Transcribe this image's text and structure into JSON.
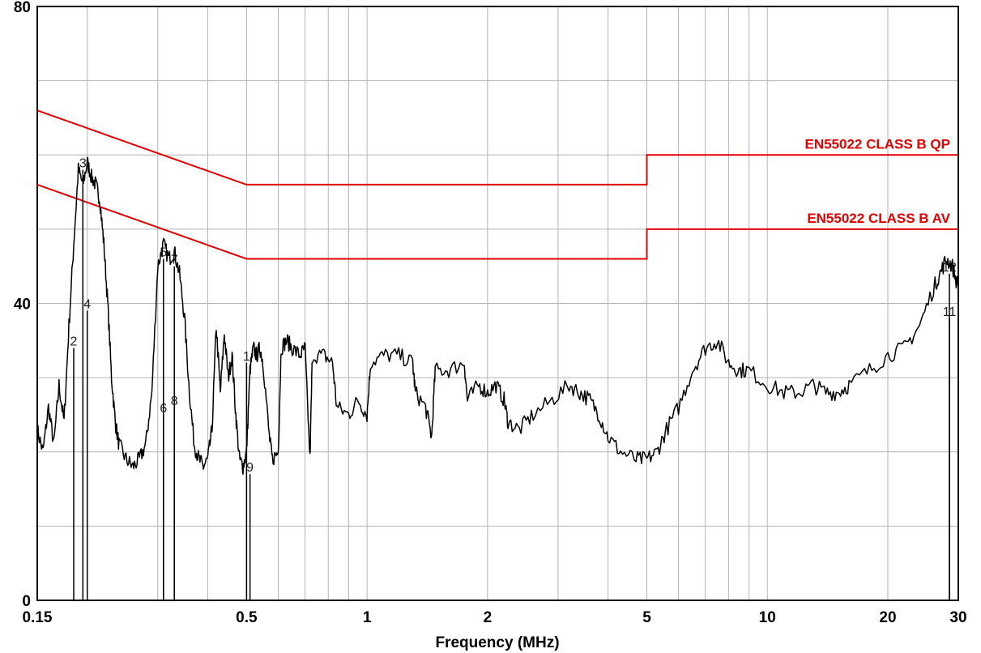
{
  "chart_data": {
    "type": "line",
    "title": "",
    "xlabel": "Frequency (MHz)",
    "ylabel": "",
    "x_scale": "log",
    "xlim": [
      0.15,
      30
    ],
    "ylim": [
      0,
      80
    ],
    "grid": true,
    "x_ticks": [
      {
        "value": 0.15,
        "label": "0.15"
      },
      {
        "value": 0.5,
        "label": "0.5"
      },
      {
        "value": 1,
        "label": "1"
      },
      {
        "value": 2,
        "label": "2"
      },
      {
        "value": 5,
        "label": "5"
      },
      {
        "value": 10,
        "label": "10"
      },
      {
        "value": 20,
        "label": "20"
      },
      {
        "value": 30,
        "label": "30"
      }
    ],
    "y_ticks": [
      {
        "value": 0,
        "label": "0"
      },
      {
        "value": 40,
        "label": "40"
      },
      {
        "value": 80,
        "label": "80"
      }
    ],
    "colors": {
      "trace": "#000000",
      "limit": "#e00000",
      "grid": "#b4b4b4"
    },
    "limits": [
      {
        "label": "EN55022 CLASS B QP",
        "points": [
          [
            0.15,
            66
          ],
          [
            0.5,
            56
          ],
          [
            5,
            56
          ],
          [
            5,
            60
          ],
          [
            30,
            60
          ]
        ]
      },
      {
        "label": "EN55022 CLASS B AV",
        "points": [
          [
            0.15,
            56
          ],
          [
            0.5,
            46
          ],
          [
            5,
            46
          ],
          [
            5,
            50
          ],
          [
            30,
            50
          ]
        ]
      }
    ],
    "trace": {
      "points": [
        [
          0.15,
          23
        ],
        [
          0.155,
          20
        ],
        [
          0.16,
          26
        ],
        [
          0.165,
          21
        ],
        [
          0.17,
          29
        ],
        [
          0.175,
          24
        ],
        [
          0.18,
          37
        ],
        [
          0.185,
          48
        ],
        [
          0.19,
          58
        ],
        [
          0.195,
          56
        ],
        [
          0.2,
          59
        ],
        [
          0.205,
          57
        ],
        [
          0.21,
          56
        ],
        [
          0.215,
          54
        ],
        [
          0.22,
          48
        ],
        [
          0.225,
          40
        ],
        [
          0.23,
          30
        ],
        [
          0.235,
          24
        ],
        [
          0.24,
          21
        ],
        [
          0.25,
          19
        ],
        [
          0.26,
          18
        ],
        [
          0.27,
          19
        ],
        [
          0.28,
          21
        ],
        [
          0.29,
          28
        ],
        [
          0.3,
          45
        ],
        [
          0.31,
          48
        ],
        [
          0.32,
          46
        ],
        [
          0.33,
          47
        ],
        [
          0.34,
          44
        ],
        [
          0.35,
          38
        ],
        [
          0.36,
          28
        ],
        [
          0.37,
          21
        ],
        [
          0.38,
          19
        ],
        [
          0.39,
          18
        ],
        [
          0.4,
          19
        ],
        [
          0.41,
          23
        ],
        [
          0.42,
          37
        ],
        [
          0.43,
          28
        ],
        [
          0.44,
          36
        ],
        [
          0.45,
          30
        ],
        [
          0.46,
          33
        ],
        [
          0.47,
          25
        ],
        [
          0.48,
          19
        ],
        [
          0.49,
          18
        ],
        [
          0.5,
          20
        ],
        [
          0.51,
          31
        ],
        [
          0.52,
          34
        ],
        [
          0.53,
          33
        ],
        [
          0.54,
          34
        ],
        [
          0.55,
          32
        ],
        [
          0.57,
          22
        ],
        [
          0.58,
          19
        ],
        [
          0.6,
          20
        ],
        [
          0.61,
          34
        ],
        [
          0.63,
          35
        ],
        [
          0.65,
          34
        ],
        [
          0.68,
          33
        ],
        [
          0.7,
          34
        ],
        [
          0.72,
          19
        ],
        [
          0.73,
          33
        ],
        [
          0.78,
          33
        ],
        [
          0.82,
          32
        ],
        [
          0.84,
          26
        ],
        [
          0.9,
          25
        ],
        [
          0.95,
          27
        ],
        [
          1.0,
          25
        ],
        [
          1.02,
          32
        ],
        [
          1.1,
          33
        ],
        [
          1.2,
          33
        ],
        [
          1.3,
          32
        ],
        [
          1.32,
          28
        ],
        [
          1.4,
          26
        ],
        [
          1.45,
          22
        ],
        [
          1.48,
          31
        ],
        [
          1.6,
          31
        ],
        [
          1.75,
          32
        ],
        [
          1.78,
          27
        ],
        [
          1.9,
          29
        ],
        [
          2.0,
          28
        ],
        [
          2.1,
          29
        ],
        [
          2.2,
          27
        ],
        [
          2.25,
          24
        ],
        [
          2.4,
          23
        ],
        [
          2.6,
          25
        ],
        [
          2.9,
          27
        ],
        [
          3.2,
          29
        ],
        [
          3.4,
          28
        ],
        [
          3.6,
          27
        ],
        [
          3.8,
          25
        ],
        [
          4.0,
          22
        ],
        [
          4.3,
          20
        ],
        [
          4.7,
          19
        ],
        [
          5.0,
          19
        ],
        [
          5.3,
          20
        ],
        [
          5.6,
          23
        ],
        [
          6.0,
          26
        ],
        [
          6.5,
          31
        ],
        [
          7.0,
          34
        ],
        [
          7.5,
          35
        ],
        [
          8.0,
          32
        ],
        [
          8.5,
          31
        ],
        [
          9.0,
          31
        ],
        [
          10.0,
          29
        ],
        [
          11.0,
          28
        ],
        [
          12.0,
          28
        ],
        [
          13.0,
          29
        ],
        [
          14.0,
          28
        ],
        [
          15.0,
          28
        ],
        [
          16.0,
          29
        ],
        [
          18.0,
          31
        ],
        [
          20.0,
          33
        ],
        [
          22.0,
          34
        ],
        [
          24.0,
          37
        ],
        [
          26.0,
          42
        ],
        [
          27.0,
          44
        ],
        [
          28.0,
          46
        ],
        [
          29.0,
          45
        ],
        [
          30.0,
          42
        ]
      ]
    },
    "markers": [
      {
        "label": "1",
        "x": 0.5,
        "y": 32
      },
      {
        "label": "2",
        "x": 0.185,
        "y": 34
      },
      {
        "label": "3",
        "x": 0.195,
        "y": 58
      },
      {
        "label": "4",
        "x": 0.2,
        "y": 39
      },
      {
        "label": "5",
        "x": 0.31,
        "y": 46
      },
      {
        "label": "6",
        "x": 0.31,
        "y": 25
      },
      {
        "label": "7",
        "x": 0.33,
        "y": 45
      },
      {
        "label": "8",
        "x": 0.33,
        "y": 26
      },
      {
        "label": "9",
        "x": 0.51,
        "y": 17
      },
      {
        "label": "11",
        "x": 28.5,
        "y": 38
      },
      {
        "label": "12",
        "x": 28.5,
        "y": 44
      }
    ]
  }
}
